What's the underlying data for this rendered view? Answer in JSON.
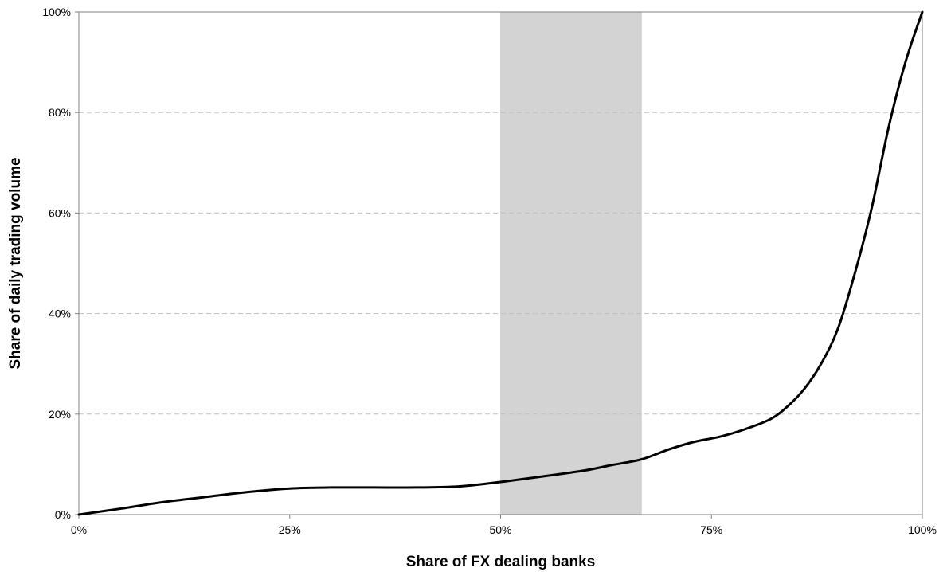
{
  "chart_data": {
    "type": "line",
    "title": "",
    "xlabel": "Share of FX dealing banks",
    "ylabel": "Share of daily trading volume",
    "xlim": [
      0,
      100
    ],
    "ylim": [
      0,
      100
    ],
    "x_ticks": [
      "0%",
      "25%",
      "50%",
      "75%",
      "100%"
    ],
    "y_ticks": [
      "0%",
      "20%",
      "40%",
      "60%",
      "80%",
      "100%"
    ],
    "grid": "horizontal dashed",
    "legend": "none",
    "shaded_band": {
      "x_range": [
        50,
        66.7
      ],
      "color": "#d3d3d3"
    },
    "line_color": "#000000",
    "series": [
      {
        "x": [
          0,
          5,
          10,
          15,
          20,
          25,
          30,
          35,
          40,
          45,
          50,
          55,
          60,
          63,
          66.7,
          70,
          73,
          76,
          79,
          82,
          84,
          86,
          88,
          90,
          92,
          94,
          96,
          98,
          100
        ],
        "y": [
          0,
          1.2,
          2.5,
          3.5,
          4.5,
          5.2,
          5.4,
          5.4,
          5.4,
          5.6,
          6.5,
          7.6,
          8.8,
          9.8,
          11,
          13,
          14.5,
          15.5,
          17,
          19,
          21.5,
          25,
          30,
          37,
          48,
          61,
          77,
          90,
          100
        ]
      }
    ]
  }
}
